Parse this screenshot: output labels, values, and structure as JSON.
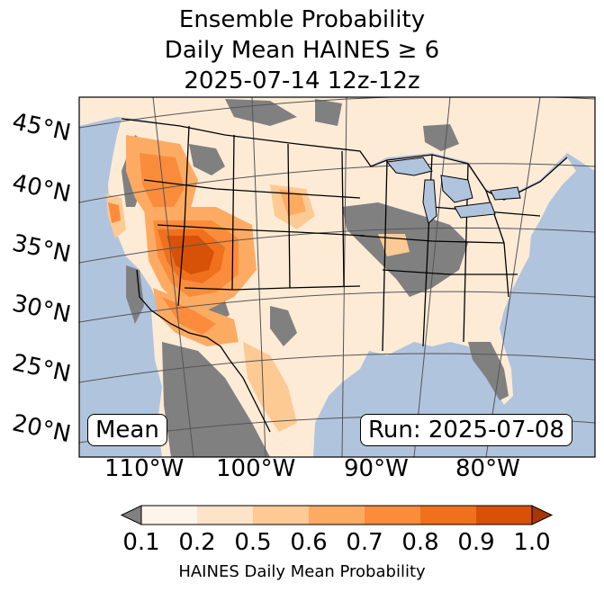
{
  "title": {
    "line1": "Ensemble Probability",
    "line2": "Daily Mean HAINES ≥ 6",
    "line3": "2025-07-14 12z-12z"
  },
  "map": {
    "mean_label": "Mean",
    "run_label": "Run: 2025-07-08",
    "lat_labels": [
      "45°N",
      "40°N",
      "35°N",
      "30°N",
      "25°N",
      "20°N"
    ],
    "lon_labels": [
      "110°W",
      "100°W",
      "90°W",
      "80°W"
    ],
    "colors": {
      "ocean": "#b0c4de",
      "land_low": "#fdebd6",
      "no_data": "#808080"
    }
  },
  "colorbar": {
    "label": "HAINES Daily Mean Probability",
    "ticks": [
      "0.1",
      "0.2",
      "0.5",
      "0.6",
      "0.7",
      "0.8",
      "0.9",
      "1.0"
    ],
    "colors": [
      "#fff4ea",
      "#fde3c8",
      "#fdca94",
      "#fdab63",
      "#fb8c3c",
      "#f0701d",
      "#d75108"
    ],
    "under_color": "#808080",
    "over_color": "#a63603"
  }
}
